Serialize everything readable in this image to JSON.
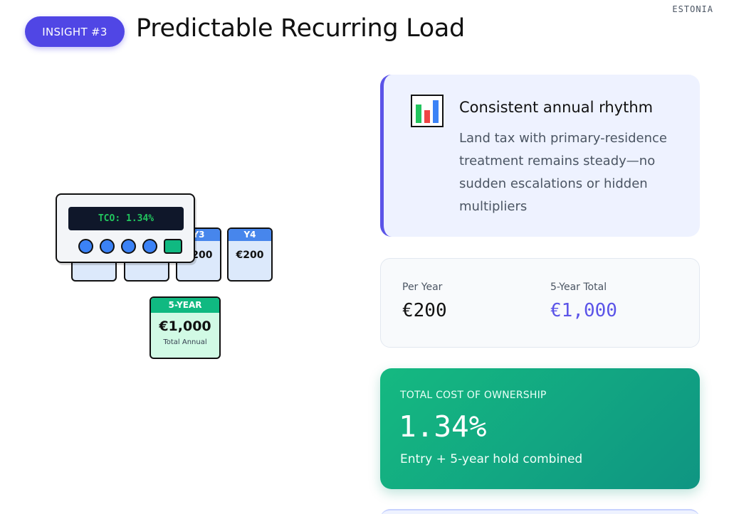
{
  "header": {
    "country": "ESTONIA",
    "badge": "INSIGHT #3",
    "title": "Predictable Recurring Load"
  },
  "illustration": {
    "calculator_display": "TCO: 1.34%",
    "year_cards": [
      {
        "label": "",
        "value": ""
      },
      {
        "label": "",
        "value": ""
      },
      {
        "label": "Y3",
        "value": "€200"
      },
      {
        "label": "Y4",
        "value": "€200"
      }
    ],
    "summary_card": {
      "label": "5-YEAR",
      "value": "€1,000",
      "caption": "Total Annual"
    }
  },
  "rhythm_card": {
    "icon": "bar-chart-icon",
    "heading": "Consistent annual rhythm",
    "body": "Land tax with primary-residence treatment remains steady—no sudden escalations or hidden multipliers"
  },
  "stats_card": {
    "per_year_label": "Per Year",
    "per_year_value": "€200",
    "five_year_label": "5-Year Total",
    "five_year_value": "€1,000"
  },
  "tco_card": {
    "label": "TOTAL COST OF OWNERSHIP",
    "value": "1.34%",
    "caption": "Entry + 5-year hold combined"
  },
  "colors": {
    "accent": "#5046e5",
    "green": "#10b981",
    "blue": "#4786ec",
    "purple_value": "#5b54e8"
  }
}
